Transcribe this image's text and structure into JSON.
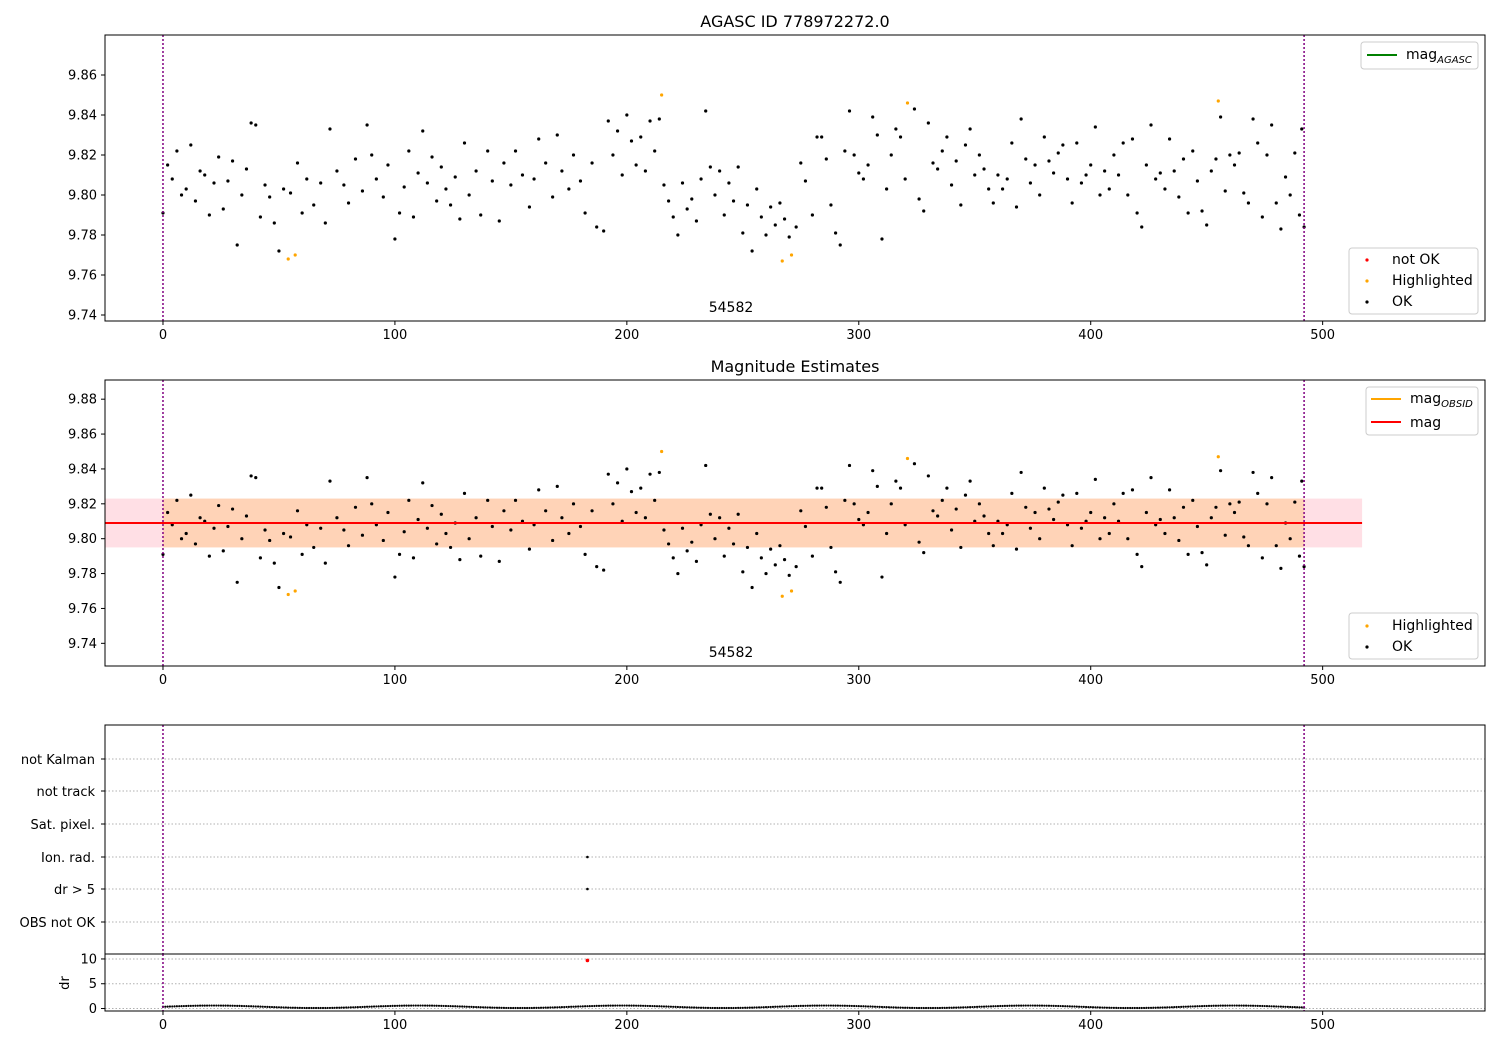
{
  "chart_data": [
    {
      "type": "scatter",
      "title": "AGASC ID 778972272.0",
      "xlim": [
        -25,
        570
      ],
      "ylim": [
        9.737,
        9.88
      ],
      "xticks": [
        "0",
        "100",
        "200",
        "300",
        "400",
        "500"
      ],
      "yticks": [
        "9.74",
        "9.76",
        "9.78",
        "9.80",
        "9.82",
        "9.84",
        "9.86"
      ],
      "vlines": [
        0,
        492
      ],
      "annotation": {
        "text": "54582",
        "x": 246,
        "y": 9.741
      },
      "legend_lines": [
        {
          "label": "mag",
          "sub": "AGASC",
          "color": "#008000"
        }
      ],
      "legend_markers": [
        {
          "label": "not OK",
          "color": "#ff0000"
        },
        {
          "label": "Highlighted",
          "color": "#ffa500"
        },
        {
          "label": "OK",
          "color": "#000000"
        }
      ],
      "highlighted_points": [
        [
          54,
          9.768
        ],
        [
          57,
          9.77
        ],
        [
          215,
          9.85
        ],
        [
          267,
          9.767
        ],
        [
          271,
          9.77
        ],
        [
          321,
          9.846
        ],
        [
          455,
          9.847
        ]
      ],
      "ok_points": [
        [
          0,
          9.791
        ],
        [
          2,
          9.815
        ],
        [
          4,
          9.808
        ],
        [
          6,
          9.822
        ],
        [
          8,
          9.8
        ],
        [
          10,
          9.803
        ],
        [
          12,
          9.825
        ],
        [
          14,
          9.797
        ],
        [
          16,
          9.812
        ],
        [
          18,
          9.81
        ],
        [
          20,
          9.79
        ],
        [
          22,
          9.806
        ],
        [
          24,
          9.819
        ],
        [
          26,
          9.793
        ],
        [
          28,
          9.807
        ],
        [
          30,
          9.817
        ],
        [
          32,
          9.775
        ],
        [
          34,
          9.8
        ],
        [
          36,
          9.813
        ],
        [
          38,
          9.836
        ],
        [
          40,
          9.835
        ],
        [
          42,
          9.789
        ],
        [
          44,
          9.805
        ],
        [
          46,
          9.799
        ],
        [
          48,
          9.786
        ],
        [
          50,
          9.772
        ],
        [
          52,
          9.803
        ],
        [
          55,
          9.801
        ],
        [
          58,
          9.816
        ],
        [
          60,
          9.791
        ],
        [
          62,
          9.808
        ],
        [
          65,
          9.795
        ],
        [
          68,
          9.806
        ],
        [
          70,
          9.786
        ],
        [
          72,
          9.833
        ],
        [
          75,
          9.812
        ],
        [
          78,
          9.805
        ],
        [
          80,
          9.796
        ],
        [
          83,
          9.818
        ],
        [
          86,
          9.802
        ],
        [
          88,
          9.835
        ],
        [
          90,
          9.82
        ],
        [
          92,
          9.808
        ],
        [
          95,
          9.799
        ],
        [
          97,
          9.815
        ],
        [
          100,
          9.778
        ],
        [
          102,
          9.791
        ],
        [
          104,
          9.804
        ],
        [
          106,
          9.822
        ],
        [
          108,
          9.789
        ],
        [
          110,
          9.811
        ],
        [
          112,
          9.832
        ],
        [
          114,
          9.806
        ],
        [
          116,
          9.819
        ],
        [
          118,
          9.797
        ],
        [
          120,
          9.814
        ],
        [
          122,
          9.803
        ],
        [
          124,
          9.795
        ],
        [
          126,
          9.809
        ],
        [
          128,
          9.788
        ],
        [
          130,
          9.826
        ],
        [
          132,
          9.8
        ],
        [
          135,
          9.812
        ],
        [
          137,
          9.79
        ],
        [
          140,
          9.822
        ],
        [
          142,
          9.807
        ],
        [
          145,
          9.787
        ],
        [
          147,
          9.816
        ],
        [
          150,
          9.805
        ],
        [
          152,
          9.822
        ],
        [
          155,
          9.81
        ],
        [
          158,
          9.794
        ],
        [
          160,
          9.808
        ],
        [
          162,
          9.828
        ],
        [
          165,
          9.816
        ],
        [
          168,
          9.799
        ],
        [
          170,
          9.83
        ],
        [
          172,
          9.812
        ],
        [
          175,
          9.803
        ],
        [
          177,
          9.82
        ],
        [
          180,
          9.807
        ],
        [
          182,
          9.791
        ],
        [
          185,
          9.816
        ],
        [
          187,
          9.784
        ],
        [
          190,
          9.782
        ],
        [
          192,
          9.837
        ],
        [
          194,
          9.82
        ],
        [
          196,
          9.832
        ],
        [
          198,
          9.81
        ],
        [
          200,
          9.84
        ],
        [
          202,
          9.827
        ],
        [
          204,
          9.815
        ],
        [
          206,
          9.829
        ],
        [
          208,
          9.812
        ],
        [
          210,
          9.837
        ],
        [
          212,
          9.822
        ],
        [
          214,
          9.838
        ],
        [
          216,
          9.805
        ],
        [
          218,
          9.797
        ],
        [
          220,
          9.789
        ],
        [
          222,
          9.78
        ],
        [
          224,
          9.806
        ],
        [
          226,
          9.793
        ],
        [
          228,
          9.798
        ],
        [
          230,
          9.787
        ],
        [
          232,
          9.808
        ],
        [
          234,
          9.842
        ],
        [
          236,
          9.814
        ],
        [
          238,
          9.8
        ],
        [
          240,
          9.812
        ],
        [
          242,
          9.79
        ],
        [
          244,
          9.806
        ],
        [
          246,
          9.797
        ],
        [
          248,
          9.814
        ],
        [
          250,
          9.781
        ],
        [
          252,
          9.795
        ],
        [
          254,
          9.772
        ],
        [
          256,
          9.803
        ],
        [
          258,
          9.789
        ],
        [
          260,
          9.78
        ],
        [
          262,
          9.794
        ],
        [
          264,
          9.785
        ],
        [
          266,
          9.796
        ],
        [
          268,
          9.788
        ],
        [
          270,
          9.779
        ],
        [
          273,
          9.784
        ],
        [
          275,
          9.816
        ],
        [
          277,
          9.807
        ],
        [
          280,
          9.79
        ],
        [
          282,
          9.829
        ],
        [
          284,
          9.829
        ],
        [
          286,
          9.818
        ],
        [
          288,
          9.795
        ],
        [
          290,
          9.781
        ],
        [
          292,
          9.775
        ],
        [
          294,
          9.822
        ],
        [
          296,
          9.842
        ],
        [
          298,
          9.82
        ],
        [
          300,
          9.811
        ],
        [
          302,
          9.808
        ],
        [
          304,
          9.815
        ],
        [
          306,
          9.839
        ],
        [
          308,
          9.83
        ],
        [
          310,
          9.778
        ],
        [
          312,
          9.803
        ],
        [
          314,
          9.82
        ],
        [
          316,
          9.833
        ],
        [
          318,
          9.829
        ],
        [
          320,
          9.808
        ],
        [
          324,
          9.843
        ],
        [
          326,
          9.798
        ],
        [
          328,
          9.792
        ],
        [
          330,
          9.836
        ],
        [
          332,
          9.816
        ],
        [
          334,
          9.813
        ],
        [
          336,
          9.822
        ],
        [
          338,
          9.829
        ],
        [
          340,
          9.805
        ],
        [
          342,
          9.817
        ],
        [
          344,
          9.795
        ],
        [
          346,
          9.825
        ],
        [
          348,
          9.833
        ],
        [
          350,
          9.81
        ],
        [
          352,
          9.82
        ],
        [
          354,
          9.813
        ],
        [
          356,
          9.803
        ],
        [
          358,
          9.796
        ],
        [
          360,
          9.81
        ],
        [
          362,
          9.803
        ],
        [
          364,
          9.808
        ],
        [
          366,
          9.826
        ],
        [
          368,
          9.794
        ],
        [
          370,
          9.838
        ],
        [
          372,
          9.818
        ],
        [
          374,
          9.806
        ],
        [
          376,
          9.815
        ],
        [
          378,
          9.8
        ],
        [
          380,
          9.829
        ],
        [
          382,
          9.817
        ],
        [
          384,
          9.811
        ],
        [
          386,
          9.821
        ],
        [
          388,
          9.825
        ],
        [
          390,
          9.808
        ],
        [
          392,
          9.796
        ],
        [
          394,
          9.826
        ],
        [
          396,
          9.806
        ],
        [
          398,
          9.81
        ],
        [
          400,
          9.815
        ],
        [
          402,
          9.834
        ],
        [
          404,
          9.8
        ],
        [
          406,
          9.812
        ],
        [
          408,
          9.803
        ],
        [
          410,
          9.82
        ],
        [
          412,
          9.81
        ],
        [
          414,
          9.826
        ],
        [
          416,
          9.8
        ],
        [
          418,
          9.828
        ],
        [
          420,
          9.791
        ],
        [
          422,
          9.784
        ],
        [
          424,
          9.815
        ],
        [
          426,
          9.835
        ],
        [
          428,
          9.808
        ],
        [
          430,
          9.811
        ],
        [
          432,
          9.803
        ],
        [
          434,
          9.828
        ],
        [
          436,
          9.812
        ],
        [
          438,
          9.799
        ],
        [
          440,
          9.818
        ],
        [
          442,
          9.791
        ],
        [
          444,
          9.822
        ],
        [
          446,
          9.807
        ],
        [
          448,
          9.792
        ],
        [
          450,
          9.785
        ],
        [
          452,
          9.812
        ],
        [
          454,
          9.818
        ],
        [
          456,
          9.839
        ],
        [
          458,
          9.802
        ],
        [
          460,
          9.82
        ],
        [
          462,
          9.815
        ],
        [
          464,
          9.821
        ],
        [
          466,
          9.801
        ],
        [
          468,
          9.796
        ],
        [
          470,
          9.838
        ],
        [
          472,
          9.826
        ],
        [
          474,
          9.789
        ],
        [
          476,
          9.82
        ],
        [
          478,
          9.835
        ],
        [
          480,
          9.796
        ],
        [
          482,
          9.783
        ],
        [
          484,
          9.809
        ],
        [
          486,
          9.8
        ],
        [
          488,
          9.821
        ],
        [
          490,
          9.79
        ],
        [
          491,
          9.833
        ],
        [
          492,
          9.784
        ]
      ]
    },
    {
      "type": "scatter",
      "title": "Magnitude Estimates",
      "xlim": [
        -25,
        570
      ],
      "ylim": [
        9.727,
        9.891
      ],
      "xticks": [
        "0",
        "100",
        "200",
        "300",
        "400",
        "500"
      ],
      "yticks": [
        "9.74",
        "9.76",
        "9.78",
        "9.80",
        "9.82",
        "9.84",
        "9.86",
        "9.88"
      ],
      "vlines": [
        0,
        492
      ],
      "annotation": {
        "text": "54582",
        "x": 246,
        "y": 9.731
      },
      "mag_line": {
        "value": 9.809,
        "x_range": [
          -25,
          517
        ]
      },
      "band_pink": {
        "y_range": [
          9.795,
          9.823
        ],
        "x_range": [
          -25,
          517
        ]
      },
      "band_orange": {
        "y_range": [
          9.795,
          9.823
        ],
        "x_range": [
          0,
          492
        ]
      },
      "legend_lines": [
        {
          "label": "mag",
          "sub": "OBSID",
          "color": "#ffa500"
        },
        {
          "label": "mag",
          "sub": "",
          "color": "#ff0000"
        }
      ],
      "legend_markers": [
        {
          "label": "Highlighted",
          "color": "#ffa500"
        },
        {
          "label": "OK",
          "color": "#000000"
        }
      ]
    },
    {
      "type": "scatter",
      "ylabels": [
        "not Kalman",
        "not track",
        "Sat. pixel.",
        "Ion. rad.",
        "dr > 5",
        "OBS not OK"
      ],
      "xlim": [
        -25,
        570
      ],
      "vlines": [
        0,
        492
      ],
      "flag_points": [
        {
          "row": "Ion. rad.",
          "x": 183
        },
        {
          "row": "dr > 5",
          "x": 183
        }
      ]
    },
    {
      "type": "scatter",
      "ylabel": "dr",
      "xlim": [
        -25,
        570
      ],
      "ylim": [
        -0.5,
        11
      ],
      "xticks": [
        "0",
        "100",
        "200",
        "300",
        "400",
        "500"
      ],
      "yticks": [
        "0",
        "5",
        "10"
      ],
      "vlines": [
        0,
        492
      ],
      "dr_outlier": {
        "x": 183,
        "y": 9.7
      },
      "dr_baseline": [
        0.1,
        0.6
      ]
    }
  ]
}
